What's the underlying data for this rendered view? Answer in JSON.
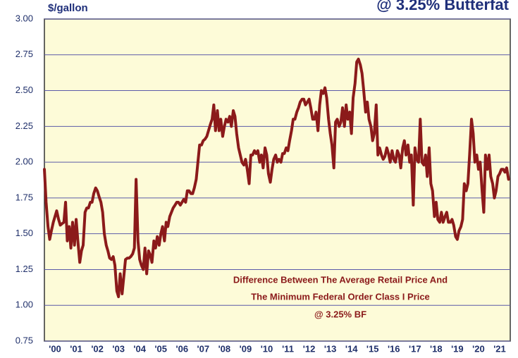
{
  "chart_data": {
    "type": "line",
    "title": "@ 3.25% Butterfat",
    "y_label": "$/gallon",
    "annotation": [
      "Difference Between The Average Retail Price And",
      "The Minimum Federal Order Class I Price",
      "@ 3.25% BF"
    ],
    "color": "#8b1a1a",
    "grid": true,
    "xlim": [
      2000,
      2022
    ],
    "ylim": [
      0.75,
      3
    ],
    "yticks": [
      {
        "value": 0.75,
        "label": "0.75"
      },
      {
        "value": 1,
        "label": "1.00"
      },
      {
        "value": 1.25,
        "label": "1.25"
      },
      {
        "value": 1.5,
        "label": "1.50"
      },
      {
        "value": 1.75,
        "label": "1.75"
      },
      {
        "value": 2,
        "label": "2.00"
      },
      {
        "value": 2.25,
        "label": "2.25"
      },
      {
        "value": 2.5,
        "label": "2.50"
      },
      {
        "value": 2.75,
        "label": "2.75"
      },
      {
        "value": 3,
        "label": "3.00"
      }
    ],
    "xticks": [
      {
        "value": 2000.5,
        "label": "'00"
      },
      {
        "value": 2001.5,
        "label": "'01"
      },
      {
        "value": 2002.5,
        "label": "'02"
      },
      {
        "value": 2003.5,
        "label": "'03"
      },
      {
        "value": 2004.5,
        "label": "'04"
      },
      {
        "value": 2005.5,
        "label": "'05"
      },
      {
        "value": 2006.5,
        "label": "'06"
      },
      {
        "value": 2007.5,
        "label": "'07"
      },
      {
        "value": 2008.5,
        "label": "'08"
      },
      {
        "value": 2009.5,
        "label": "'09"
      },
      {
        "value": 2010.5,
        "label": "'10"
      },
      {
        "value": 2011.5,
        "label": "'11"
      },
      {
        "value": 2012.5,
        "label": "'12"
      },
      {
        "value": 2013.5,
        "label": "'13"
      },
      {
        "value": 2014.5,
        "label": "'14"
      },
      {
        "value": 2015.5,
        "label": "'15"
      },
      {
        "value": 2016.5,
        "label": "'16"
      },
      {
        "value": 2017.5,
        "label": "'17"
      },
      {
        "value": 2018.5,
        "label": "'18"
      },
      {
        "value": 2019.5,
        "label": "'19"
      },
      {
        "value": 2020.5,
        "label": "'20"
      },
      {
        "value": 2021.5,
        "label": "'21"
      }
    ],
    "x": [
      2000.0,
      2000.08,
      2000.17,
      2000.25,
      2000.33,
      2000.42,
      2000.5,
      2000.58,
      2000.67,
      2000.75,
      2000.83,
      2000.92,
      2001.0,
      2001.08,
      2001.17,
      2001.25,
      2001.33,
      2001.42,
      2001.5,
      2001.58,
      2001.67,
      2001.75,
      2001.83,
      2001.92,
      2002.0,
      2002.08,
      2002.17,
      2002.25,
      2002.33,
      2002.42,
      2002.5,
      2002.58,
      2002.67,
      2002.75,
      2002.83,
      2002.92,
      2003.0,
      2003.08,
      2003.17,
      2003.25,
      2003.33,
      2003.42,
      2003.5,
      2003.58,
      2003.67,
      2003.75,
      2003.83,
      2003.92,
      2004.0,
      2004.08,
      2004.17,
      2004.25,
      2004.33,
      2004.42,
      2004.5,
      2004.58,
      2004.67,
      2004.75,
      2004.83,
      2004.92,
      2005.0,
      2005.08,
      2005.17,
      2005.25,
      2005.33,
      2005.42,
      2005.5,
      2005.58,
      2005.67,
      2005.75,
      2005.83,
      2005.92,
      2006.0,
      2006.08,
      2006.17,
      2006.25,
      2006.33,
      2006.42,
      2006.5,
      2006.58,
      2006.67,
      2006.75,
      2006.83,
      2006.92,
      2007.0,
      2007.08,
      2007.17,
      2007.25,
      2007.33,
      2007.42,
      2007.5,
      2007.58,
      2007.67,
      2007.75,
      2007.83,
      2007.92,
      2008.0,
      2008.08,
      2008.17,
      2008.25,
      2008.33,
      2008.42,
      2008.5,
      2008.58,
      2008.67,
      2008.75,
      2008.83,
      2008.92,
      2009.0,
      2009.08,
      2009.17,
      2009.25,
      2009.33,
      2009.42,
      2009.5,
      2009.58,
      2009.67,
      2009.75,
      2009.83,
      2009.92,
      2010.0,
      2010.08,
      2010.17,
      2010.25,
      2010.33,
      2010.42,
      2010.5,
      2010.58,
      2010.67,
      2010.75,
      2010.83,
      2010.92,
      2011.0,
      2011.08,
      2011.17,
      2011.25,
      2011.33,
      2011.42,
      2011.5,
      2011.58,
      2011.67,
      2011.75,
      2011.83,
      2011.92,
      2012.0,
      2012.08,
      2012.17,
      2012.25,
      2012.33,
      2012.42,
      2012.5,
      2012.58,
      2012.67,
      2012.75,
      2012.83,
      2012.92,
      2013.0,
      2013.08,
      2013.17,
      2013.25,
      2013.33,
      2013.42,
      2013.5,
      2013.58,
      2013.67,
      2013.75,
      2013.83,
      2013.92,
      2014.0,
      2014.08,
      2014.17,
      2014.25,
      2014.33,
      2014.42,
      2014.5,
      2014.58,
      2014.67,
      2014.75,
      2014.83,
      2014.92,
      2015.0,
      2015.08,
      2015.17,
      2015.25,
      2015.33,
      2015.42,
      2015.5,
      2015.58,
      2015.67,
      2015.75,
      2015.83,
      2015.92,
      2016.0,
      2016.08,
      2016.17,
      2016.25,
      2016.33,
      2016.42,
      2016.5,
      2016.58,
      2016.67,
      2016.75,
      2016.83,
      2016.92,
      2017.0,
      2017.08,
      2017.17,
      2017.25,
      2017.33,
      2017.42,
      2017.5,
      2017.58,
      2017.67,
      2017.75,
      2017.83,
      2017.92,
      2018.0,
      2018.08,
      2018.17,
      2018.25,
      2018.33,
      2018.42,
      2018.5,
      2018.58,
      2018.67,
      2018.75,
      2018.83,
      2018.92,
      2019.0,
      2019.08,
      2019.17,
      2019.25,
      2019.33,
      2019.42,
      2019.5,
      2019.58,
      2019.67,
      2019.75,
      2019.83,
      2019.92,
      2020.0,
      2020.08,
      2020.17,
      2020.25,
      2020.33,
      2020.42,
      2020.5,
      2020.58,
      2020.67,
      2020.75,
      2020.83,
      2020.92,
      2021.0,
      2021.08,
      2021.17,
      2021.25,
      2021.33,
      2021.42,
      2021.5,
      2021.58,
      2021.67,
      2021.75,
      2021.83,
      2021.92
    ],
    "values": [
      1.95,
      1.72,
      1.55,
      1.46,
      1.52,
      1.58,
      1.62,
      1.66,
      1.6,
      1.56,
      1.57,
      1.58,
      1.72,
      1.45,
      1.55,
      1.4,
      1.58,
      1.42,
      1.6,
      1.45,
      1.3,
      1.38,
      1.42,
      1.65,
      1.68,
      1.68,
      1.72,
      1.72,
      1.78,
      1.82,
      1.8,
      1.76,
      1.72,
      1.65,
      1.5,
      1.42,
      1.38,
      1.33,
      1.32,
      1.34,
      1.28,
      1.1,
      1.06,
      1.22,
      1.08,
      1.2,
      1.32,
      1.33,
      1.33,
      1.34,
      1.36,
      1.4,
      1.88,
      1.45,
      1.32,
      1.28,
      1.25,
      1.4,
      1.22,
      1.38,
      1.35,
      1.3,
      1.45,
      1.4,
      1.48,
      1.42,
      1.5,
      1.55,
      1.45,
      1.58,
      1.55,
      1.62,
      1.65,
      1.68,
      1.7,
      1.72,
      1.72,
      1.7,
      1.72,
      1.74,
      1.72,
      1.8,
      1.8,
      1.78,
      1.78,
      1.82,
      1.88,
      2.0,
      2.12,
      2.12,
      2.15,
      2.16,
      2.18,
      2.22,
      2.26,
      2.3,
      2.4,
      2.22,
      2.36,
      2.22,
      2.3,
      2.18,
      2.25,
      2.3,
      2.28,
      2.32,
      2.25,
      2.36,
      2.32,
      2.2,
      2.1,
      2.05,
      2.0,
      1.98,
      2.02,
      1.95,
      1.85,
      2.05,
      2.05,
      2.08,
      2.06,
      2.08,
      2.0,
      2.05,
      1.96,
      2.1,
      2.05,
      1.92,
      1.86,
      1.95,
      2.02,
      2.05,
      2.0,
      2.02,
      2.0,
      2.06,
      2.06,
      2.1,
      2.08,
      2.15,
      2.22,
      2.3,
      2.3,
      2.35,
      2.38,
      2.42,
      2.44,
      2.44,
      2.4,
      2.42,
      2.44,
      2.38,
      2.3,
      2.3,
      2.35,
      2.22,
      2.4,
      2.5,
      2.48,
      2.52,
      2.45,
      2.3,
      2.2,
      2.12,
      1.96,
      2.28,
      2.3,
      2.25,
      2.28,
      2.38,
      2.25,
      2.4,
      2.3,
      2.35,
      2.2,
      2.45,
      2.55,
      2.7,
      2.72,
      2.68,
      2.62,
      2.5,
      2.35,
      2.42,
      2.3,
      2.25,
      2.15,
      2.2,
      2.4,
      2.05,
      2.1,
      2.05,
      2.02,
      2.04,
      2.1,
      2.06,
      2.0,
      2.08,
      2.02,
      2.0,
      2.08,
      2.05,
      1.96,
      2.1,
      2.15,
      2.05,
      2.12,
      2.0,
      2.05,
      1.7,
      2.1,
      2.02,
      2.0,
      2.3,
      2.0,
      1.98,
      2.05,
      1.9,
      2.1,
      1.85,
      1.8,
      1.62,
      1.72,
      1.6,
      1.58,
      1.65,
      1.58,
      1.62,
      1.65,
      1.58,
      1.58,
      1.6,
      1.56,
      1.48,
      1.46,
      1.52,
      1.55,
      1.6,
      1.85,
      1.8,
      1.85,
      2.05,
      2.3,
      2.2,
      2.0,
      2.05,
      1.95,
      2.0,
      1.8,
      1.65,
      2.05,
      1.95,
      2.05,
      1.9,
      1.85,
      1.75,
      1.8,
      1.9,
      1.92,
      1.95,
      1.95,
      1.93,
      1.96,
      1.88
    ]
  }
}
